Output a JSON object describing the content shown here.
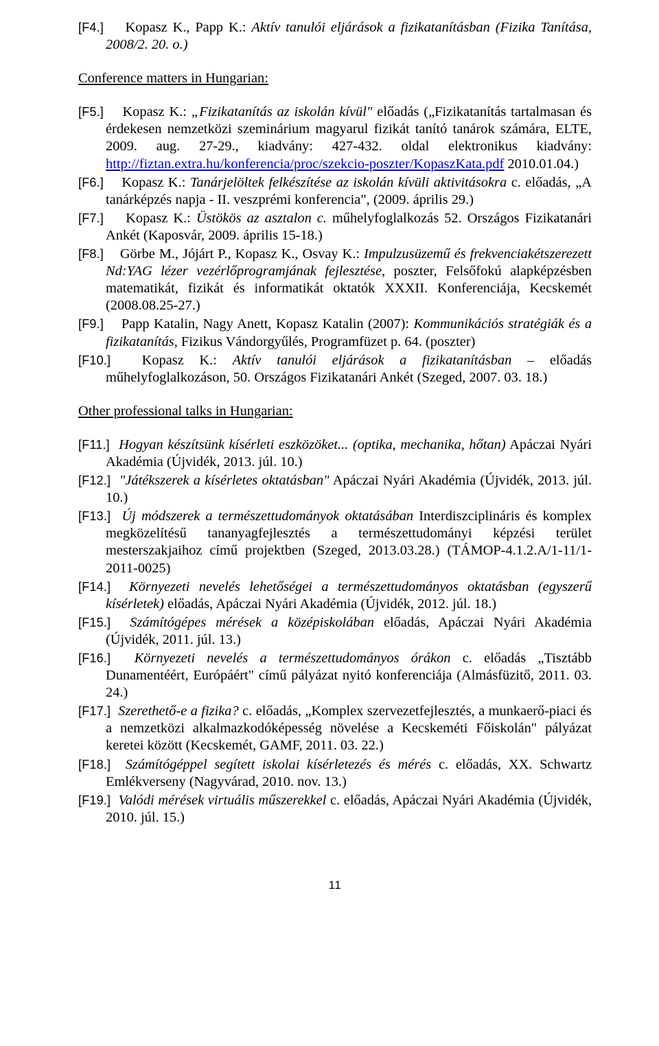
{
  "entries_a": [
    {
      "label": "[F4.]",
      "lead": "Kopasz K., Papp K.: ",
      "ital": "Aktív tanulói eljárások a fizikatanításban (Fizika Tanítása, 2008/2. 20. o.)",
      "tail": ""
    }
  ],
  "heading1": "Conference matters in Hungarian:",
  "entries_b": [
    {
      "label": "[F5.]",
      "lead": "Kopasz K.: ",
      "ital": "„Fizikatanítás az iskolán kívül\"",
      "tail_a": " előadás („Fizikatanítás tartalmasan és érdekesen nemzetközi szeminárium magyarul fizikát tanító tanárok számára, ELTE, 2009. aug. 27-29., kiadvány: 427-432. oldal elektronikus kiadvány: ",
      "link": "http://fiztan.extra.hu/konferencia/proc/szekcio-poszter/KopaszKata.pdf",
      "tail_b": " 2010.01.04.)"
    },
    {
      "label": "[F6.]",
      "lead": "Kopasz K.: ",
      "ital": "Tanárjelöltek felkészítése az iskolán kívüli aktivitásokra",
      "tail": " c. előadás, „A tanárképzés napja - II. veszprémi konferencia\", (2009. április 29.)"
    },
    {
      "label": "[F7.]",
      "lead": "Kopasz K.: ",
      "ital": "Üstökös az asztalon c.",
      "tail": " műhelyfoglalkozás 52. Országos Fizikatanári Ankét (Kaposvár, 2009. április 15-18.)"
    },
    {
      "label": "[F8.]",
      "lead": "Görbe M., Jójárt P., Kopasz K., Osvay K.: ",
      "ital": "Impulzusüzemű és frekvenciakétszerezett Nd:YAG lézer vezérlőprogramjának fejlesztése",
      "tail": ", poszter, Felsőfokú alapképzésben matematikát, fizikát és informatikát oktatók XXXII. Konferenciája, Kecskemét (2008.08.25-27.)"
    },
    {
      "label": "[F9.]",
      "lead": "Papp Katalin, Nagy Anett, Kopasz Katalin (2007): ",
      "ital": "Kommunikációs stratégiák és a fizikatanítás,",
      "tail": " Fizikus Vándorgyűlés, Programfüzet p. 64. (poszter)"
    },
    {
      "label": "[F10.]",
      "lead": "Kopasz K.: ",
      "ital": "Aktív tanulói eljárások a fizikatanításban",
      "tail": " – előadás műhelyfoglalkozáson, 50. Országos Fizikatanári Ankét (Szeged, 2007. 03. 18.)"
    }
  ],
  "heading2": "Other professional talks in Hungarian:",
  "entries_c": [
    {
      "label": "[F11.]",
      "ital": "Hogyan készítsünk kísérleti eszközöket... (optika, mechanika, hőtan)",
      "tail": " Apáczai Nyári Akadémia (Újvidék, 2013. júl. 10.)"
    },
    {
      "label": "[F12.]",
      "ital": "\"Játékszerek a kísérletes oktatásban\"",
      "tail": " Apáczai Nyári Akadémia (Újvidék, 2013. júl. 10.)"
    },
    {
      "label": "[F13.]",
      "ital": "Új módszerek a természettudományok oktatásában",
      "tail": " Interdiszciplináris és komplex megközelítésű tananyagfejlesztés a természettudományi képzési terület mesterszakjaihoz című projektben (Szeged, 2013.03.28.) (TÁMOP-4.1.2.A/1-11/1-2011-0025)"
    },
    {
      "label": "[F14.]",
      "ital": "Környezeti nevelés lehetőségei a természettudományos oktatásban (egyszerű kísérletek)",
      "tail": " előadás, Apáczai Nyári Akadémia (Újvidék, 2012. júl. 18.)"
    },
    {
      "label": "[F15.]",
      "ital": "Számítógépes mérések a középiskolában",
      "tail": " előadás, Apáczai Nyári Akadémia (Újvidék, 2011. júl. 13.)"
    },
    {
      "label": "[F16.]",
      "ital": "Környezeti nevelés a természettudományos órákon",
      "tail": " c. előadás „Tisztább Dunamentéért, Európáért\" című pályázat nyitó konferenciája (Almásfüzitő, 2011. 03. 24.)"
    },
    {
      "label": "[F17.]",
      "ital": "Szerethető-e a fizika?",
      "tail": " c. előadás, „Komplex szervezetfejlesztés, a munkaerő-piaci és a nemzetközi alkalmazkodóképesség növelése a Kecskeméti Főiskolán\" pályázat keretei között (Kecskemét, GAMF, 2011. 03. 22.)"
    },
    {
      "label": "[F18.]",
      "ital": "Számítógéppel segített iskolai kísérletezés és mérés",
      "tail": " c. előadás, XX. Schwartz Emlékverseny (Nagyvárad, 2010. nov. 13.)"
    },
    {
      "label": "[F19.]",
      "ital": "Valódi mérések virtuális műszerekkel",
      "tail": " c. előadás, Apáczai Nyári Akadémia (Újvidék, 2010. júl. 15.)"
    }
  ],
  "page_number": "11"
}
